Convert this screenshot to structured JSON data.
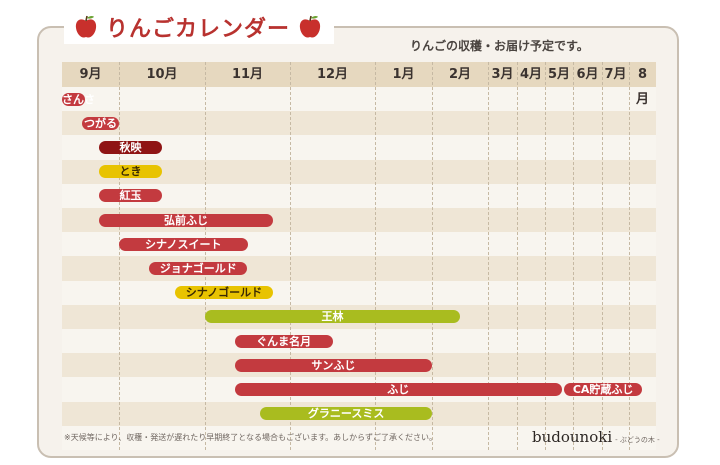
{
  "header": {
    "title": "りんごカレンダー",
    "subtitle": "りんごの収穫・お届け予定です。"
  },
  "months": [
    "9月",
    "10月",
    "11月",
    "12月",
    "1月",
    "2月",
    "3月",
    "4月",
    "5月",
    "6月",
    "7月",
    "8月"
  ],
  "varieties": [
    {
      "name": "さんさ",
      "start_month": 0.0,
      "end_month": 0.4,
      "color": "#c33a3f",
      "style": "red"
    },
    {
      "name": "つがる",
      "start_month": 0.35,
      "end_month": 1.0,
      "color": "#c33a3f",
      "style": "red"
    },
    {
      "name": "秋映",
      "start_month": 0.65,
      "end_month": 1.5,
      "color": "#8f1414",
      "style": "darkred"
    },
    {
      "name": "とき",
      "start_month": 0.65,
      "end_month": 1.5,
      "color": "#e8c300",
      "style": "yellow"
    },
    {
      "name": "紅玉",
      "start_month": 0.65,
      "end_month": 1.5,
      "color": "#c33a3f",
      "style": "red"
    },
    {
      "name": "弘前ふじ",
      "start_month": 0.65,
      "end_month": 2.8,
      "color": "#c33a3f",
      "style": "red"
    },
    {
      "name": "シナノスイート",
      "start_month": 1.0,
      "end_month": 2.5,
      "color": "#c33a3f",
      "style": "red"
    },
    {
      "name": "ジョナゴールド",
      "start_month": 1.35,
      "end_month": 2.5,
      "color": "#c33a3f",
      "style": "red"
    },
    {
      "name": "シナノゴールド",
      "start_month": 1.65,
      "end_month": 2.8,
      "color": "#e8c300",
      "style": "yellow"
    },
    {
      "name": "王林",
      "start_month": 2.0,
      "end_month": 5.5,
      "color": "#a9bc1f",
      "style": "green"
    },
    {
      "name": "ぐんま名月",
      "start_month": 2.35,
      "end_month": 3.5,
      "color": "#c33a3f",
      "style": "red"
    },
    {
      "name": "サンふじ",
      "start_month": 2.35,
      "end_month": 5.0,
      "color": "#c33a3f",
      "style": "red"
    },
    {
      "name": "ふじ",
      "start_month": 2.35,
      "end_month": 8.6,
      "color": "#c33a3f",
      "style": "red",
      "extra_label": "CA貯蔵ふじ",
      "extra_start_month": 8.6,
      "extra_end_month": 11.5
    },
    {
      "name": "グラニースミス",
      "start_month": 2.65,
      "end_month": 5.0,
      "color": "#a9bc1f",
      "style": "green"
    }
  ],
  "footer": {
    "note": "※天候等により、収穫・発送が遅れたり早期終了となる場合もございます。あしからずご了承ください。",
    "brand": "budounoki",
    "brand_sub": "- ぶどうの木 -"
  }
}
